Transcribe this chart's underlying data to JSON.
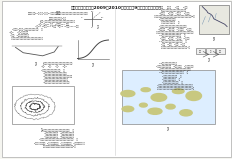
{
  "title": "大关县职业高级中学2009－2010学年高三（9）期末考试地理试卷",
  "background_color": "#f5f5f0",
  "page_color": "#ffffff",
  "text_color": "#333333",
  "line_color": "#555555"
}
